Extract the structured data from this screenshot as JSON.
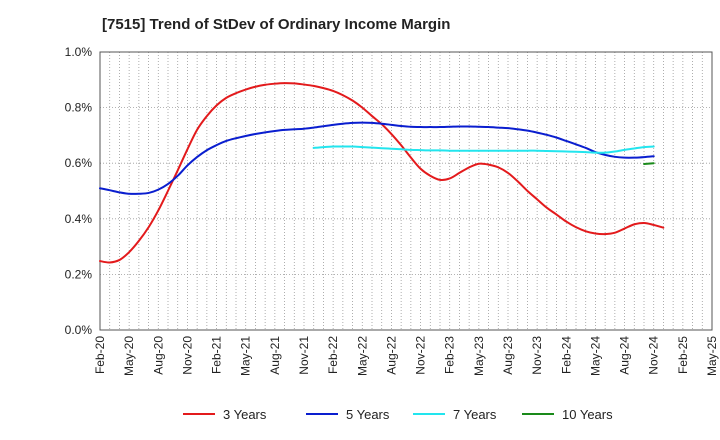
{
  "chart_data": {
    "type": "line",
    "title": "[7515]  Trend of StDev of Ordinary Income Margin",
    "x_categories": [
      "Feb-20",
      "May-20",
      "Aug-20",
      "Nov-20",
      "Feb-21",
      "May-21",
      "Aug-21",
      "Nov-21",
      "Feb-22",
      "May-22",
      "Aug-22",
      "Nov-22",
      "Feb-23",
      "May-23",
      "Aug-23",
      "Nov-23",
      "Feb-24",
      "May-24",
      "Aug-24",
      "Nov-24",
      "Feb-25",
      "May-25"
    ],
    "y_ticks": [
      "0.0%",
      "0.2%",
      "0.4%",
      "0.6%",
      "0.8%",
      "1.0%"
    ],
    "ylim": [
      0,
      1.0
    ],
    "y_unit": "%",
    "grid": true,
    "legend_position": "bottom",
    "series": [
      {
        "name": "3 Years",
        "color": "#e31a1c",
        "points": [
          [
            0,
            0.248
          ],
          [
            0.33,
            0.243
          ],
          [
            0.67,
            0.252
          ],
          [
            1,
            0.28
          ],
          [
            1.33,
            0.32
          ],
          [
            1.67,
            0.37
          ],
          [
            2,
            0.43
          ],
          [
            2.33,
            0.5
          ],
          [
            2.67,
            0.575
          ],
          [
            3,
            0.65
          ],
          [
            3.33,
            0.72
          ],
          [
            3.67,
            0.77
          ],
          [
            4,
            0.808
          ],
          [
            4.33,
            0.835
          ],
          [
            4.67,
            0.852
          ],
          [
            5,
            0.865
          ],
          [
            5.33,
            0.875
          ],
          [
            5.67,
            0.882
          ],
          [
            6,
            0.886
          ],
          [
            6.33,
            0.888
          ],
          [
            6.67,
            0.887
          ],
          [
            7,
            0.883
          ],
          [
            7.33,
            0.878
          ],
          [
            7.67,
            0.87
          ],
          [
            8,
            0.86
          ],
          [
            8.33,
            0.845
          ],
          [
            8.67,
            0.825
          ],
          [
            9,
            0.8
          ],
          [
            9.33,
            0.77
          ],
          [
            9.67,
            0.74
          ],
          [
            10,
            0.705
          ],
          [
            10.33,
            0.665
          ],
          [
            10.67,
            0.62
          ],
          [
            11,
            0.58
          ],
          [
            11.33,
            0.555
          ],
          [
            11.67,
            0.54
          ],
          [
            12,
            0.545
          ],
          [
            12.33,
            0.565
          ],
          [
            12.67,
            0.585
          ],
          [
            13,
            0.598
          ],
          [
            13.33,
            0.595
          ],
          [
            13.67,
            0.585
          ],
          [
            14,
            0.565
          ],
          [
            14.33,
            0.535
          ],
          [
            14.67,
            0.5
          ],
          [
            15,
            0.47
          ],
          [
            15.33,
            0.44
          ],
          [
            15.67,
            0.415
          ],
          [
            16,
            0.39
          ],
          [
            16.33,
            0.37
          ],
          [
            16.67,
            0.355
          ],
          [
            17,
            0.347
          ],
          [
            17.33,
            0.345
          ],
          [
            17.67,
            0.35
          ],
          [
            18,
            0.365
          ],
          [
            18.33,
            0.38
          ],
          [
            18.67,
            0.385
          ],
          [
            19,
            0.378
          ],
          [
            19.33,
            0.368
          ]
        ]
      },
      {
        "name": "5 Years",
        "color": "#0a1ecf",
        "points": [
          [
            0,
            0.51
          ],
          [
            0.33,
            0.503
          ],
          [
            0.67,
            0.495
          ],
          [
            1,
            0.49
          ],
          [
            1.33,
            0.49
          ],
          [
            1.67,
            0.493
          ],
          [
            2,
            0.505
          ],
          [
            2.33,
            0.525
          ],
          [
            2.67,
            0.555
          ],
          [
            3,
            0.592
          ],
          [
            3.33,
            0.622
          ],
          [
            3.67,
            0.647
          ],
          [
            4,
            0.665
          ],
          [
            4.33,
            0.68
          ],
          [
            4.67,
            0.69
          ],
          [
            5,
            0.698
          ],
          [
            5.33,
            0.705
          ],
          [
            5.67,
            0.711
          ],
          [
            6,
            0.716
          ],
          [
            6.33,
            0.72
          ],
          [
            6.67,
            0.722
          ],
          [
            7,
            0.724
          ],
          [
            7.33,
            0.728
          ],
          [
            7.67,
            0.733
          ],
          [
            8,
            0.738
          ],
          [
            8.33,
            0.742
          ],
          [
            8.67,
            0.745
          ],
          [
            9,
            0.746
          ],
          [
            9.33,
            0.745
          ],
          [
            9.67,
            0.742
          ],
          [
            10,
            0.738
          ],
          [
            10.33,
            0.734
          ],
          [
            10.67,
            0.731
          ],
          [
            11,
            0.73
          ],
          [
            11.33,
            0.73
          ],
          [
            11.67,
            0.73
          ],
          [
            12,
            0.731
          ],
          [
            12.33,
            0.732
          ],
          [
            12.67,
            0.732
          ],
          [
            13,
            0.731
          ],
          [
            13.33,
            0.73
          ],
          [
            13.67,
            0.728
          ],
          [
            14,
            0.726
          ],
          [
            14.33,
            0.722
          ],
          [
            14.67,
            0.717
          ],
          [
            15,
            0.71
          ],
          [
            15.33,
            0.702
          ],
          [
            15.67,
            0.692
          ],
          [
            16,
            0.68
          ],
          [
            16.33,
            0.668
          ],
          [
            16.67,
            0.655
          ],
          [
            17,
            0.64
          ],
          [
            17.33,
            0.63
          ],
          [
            17.67,
            0.623
          ],
          [
            18,
            0.62
          ],
          [
            18.33,
            0.62
          ],
          [
            18.67,
            0.622
          ],
          [
            19,
            0.625
          ]
        ]
      },
      {
        "name": "7 Years",
        "color": "#22e5ee",
        "points": [
          [
            7.33,
            0.655
          ],
          [
            7.67,
            0.658
          ],
          [
            8,
            0.66
          ],
          [
            8.33,
            0.66
          ],
          [
            8.67,
            0.66
          ],
          [
            9,
            0.658
          ],
          [
            9.33,
            0.656
          ],
          [
            9.67,
            0.654
          ],
          [
            10,
            0.652
          ],
          [
            10.33,
            0.65
          ],
          [
            10.67,
            0.648
          ],
          [
            11,
            0.647
          ],
          [
            11.33,
            0.646
          ],
          [
            11.67,
            0.646
          ],
          [
            12,
            0.645
          ],
          [
            12.33,
            0.645
          ],
          [
            12.67,
            0.645
          ],
          [
            13,
            0.645
          ],
          [
            13.33,
            0.645
          ],
          [
            13.67,
            0.645
          ],
          [
            14,
            0.645
          ],
          [
            14.33,
            0.645
          ],
          [
            14.67,
            0.645
          ],
          [
            15,
            0.645
          ],
          [
            15.33,
            0.644
          ],
          [
            15.67,
            0.643
          ],
          [
            16,
            0.642
          ],
          [
            16.33,
            0.641
          ],
          [
            16.67,
            0.64
          ],
          [
            17,
            0.638
          ],
          [
            17.33,
            0.638
          ],
          [
            17.67,
            0.642
          ],
          [
            18,
            0.648
          ],
          [
            18.33,
            0.653
          ],
          [
            18.67,
            0.658
          ],
          [
            19,
            0.66
          ]
        ]
      },
      {
        "name": "10 Years",
        "color": "#1a8a1a",
        "points": [
          [
            18.67,
            0.597
          ],
          [
            19,
            0.6
          ]
        ]
      }
    ]
  }
}
